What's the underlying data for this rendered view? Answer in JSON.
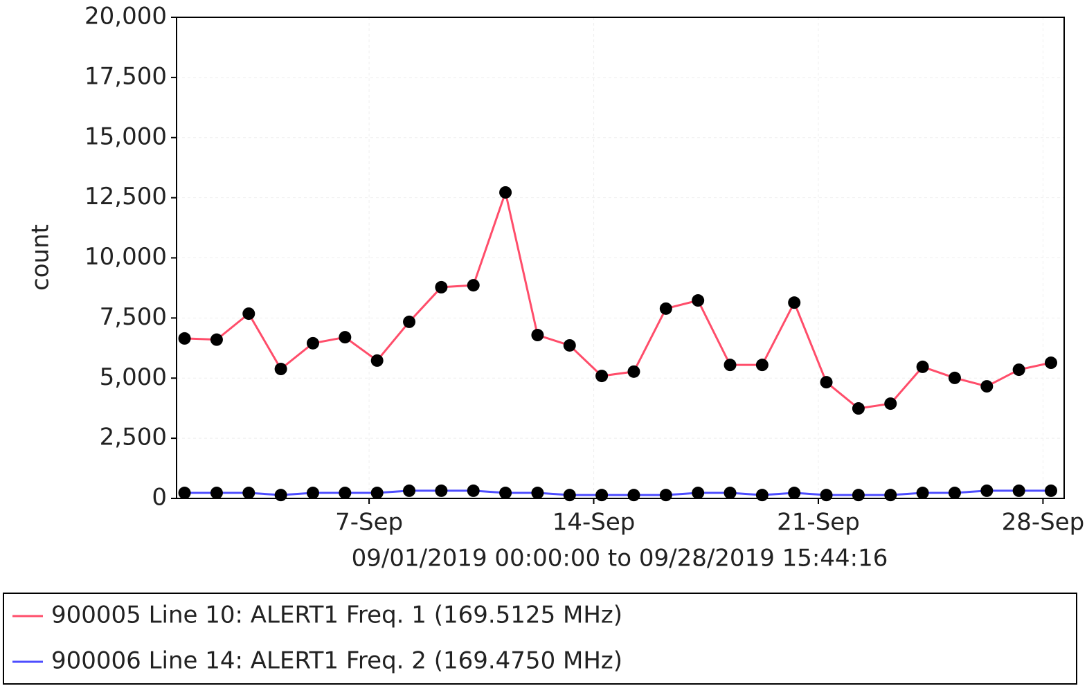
{
  "chart_data": {
    "type": "line",
    "xlabel": "09/01/2019 00:00:00 to 09/28/2019 15:44:16",
    "ylabel": "count",
    "x": [
      1.25,
      2.25,
      3.25,
      4.25,
      5.25,
      6.25,
      7.25,
      8.25,
      9.25,
      10.25,
      11.25,
      12.25,
      13.25,
      14.25,
      15.25,
      16.25,
      17.25,
      18.25,
      19.25,
      20.25,
      21.25,
      22.25,
      23.25,
      24.25,
      25.25,
      26.25,
      27.25,
      28.25
    ],
    "series": [
      {
        "name": "900005 Line 10: ALERT1 Freq. 1 (169.5125 MHz)",
        "color": "#ff4d6a",
        "values": [
          6650,
          6600,
          7680,
          5380,
          6450,
          6700,
          5730,
          7340,
          8780,
          8860,
          12720,
          6790,
          6360,
          5090,
          5270,
          7890,
          8230,
          5550,
          5550,
          8140,
          4830,
          3740,
          3940,
          5470,
          5010,
          4660,
          5350,
          5640
        ]
      },
      {
        "name": "900006 Line 14: ALERT1 Freq. 2 (169.4750 MHz)",
        "color": "#4d4dff",
        "values": [
          230,
          230,
          230,
          140,
          230,
          230,
          230,
          320,
          320,
          320,
          230,
          230,
          140,
          140,
          140,
          140,
          230,
          230,
          140,
          230,
          140,
          140,
          140,
          230,
          230,
          320,
          320,
          320
        ]
      }
    ],
    "marker_color": "#000000",
    "xlim": [
      1,
      28.66
    ],
    "xticks": [
      {
        "value": 7,
        "label": "7-Sep"
      },
      {
        "value": 14,
        "label": "14-Sep"
      },
      {
        "value": 21,
        "label": "21-Sep"
      },
      {
        "value": 28,
        "label": "28-Sep"
      }
    ],
    "ylim": [
      0,
      20000
    ],
    "yticks": [
      0,
      {
        "value": 2500,
        "label": "2,500"
      },
      {
        "value": 5000,
        "label": "5,000"
      },
      {
        "value": 7500,
        "label": "7,500"
      },
      {
        "value": 10000,
        "label": "10,000"
      },
      {
        "value": 12500,
        "label": "12,500"
      },
      {
        "value": 15000,
        "label": "15,000"
      },
      {
        "value": 17500,
        "label": "17,500"
      },
      {
        "value": 20000,
        "label": "20,000"
      }
    ],
    "grid": true,
    "legend": "bottom"
  }
}
